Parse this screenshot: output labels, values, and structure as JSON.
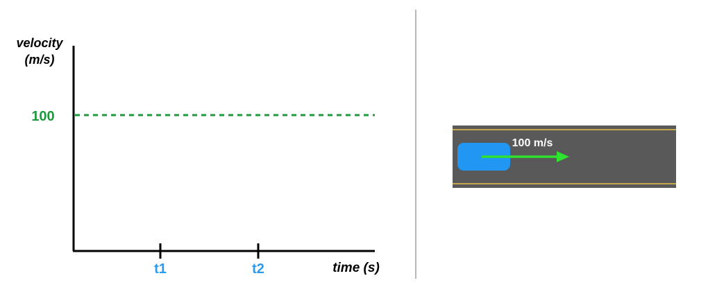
{
  "graph": {
    "y_axis_label_line1": "velocity",
    "y_axis_label_line2": "(m/s)",
    "x_axis_label": "time (s)",
    "velocity_value_label": "100",
    "tick_labels": [
      "t1",
      "t2"
    ]
  },
  "road": {
    "velocity_label": "100 m/s"
  },
  "colors": {
    "axis": "#000000",
    "velocity_line": "#1e9a3c",
    "time_ticks": "#2a9bf0",
    "divider": "#9e9e9e",
    "road": "#595959",
    "lane_line": "#e8c04a",
    "car": "#2196f3",
    "velocity_arrow": "#2ee22e",
    "road_label": "#ffffff"
  }
}
